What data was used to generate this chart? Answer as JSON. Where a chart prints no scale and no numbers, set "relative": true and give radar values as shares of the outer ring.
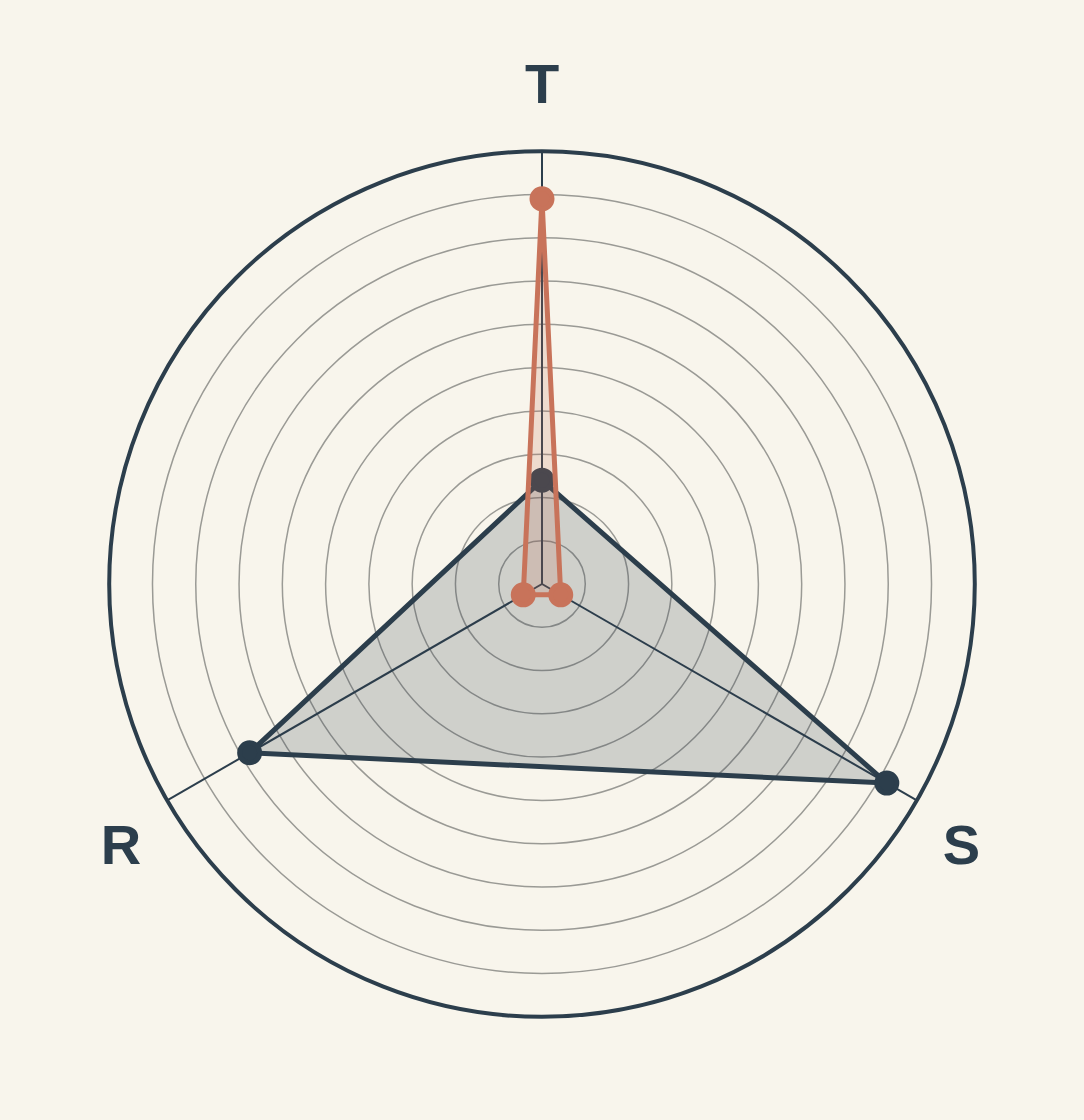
{
  "chart_data": {
    "type": "radar",
    "categories": [
      "T",
      "S",
      "R"
    ],
    "relative": true,
    "grid": true,
    "marker": "circle",
    "legend": false,
    "series": [
      {
        "color": "#c8735a",
        "values": [
          0.89,
          0.05,
          0.05
        ]
      },
      {
        "color": "#2c3e4c",
        "values": [
          0.24,
          0.92,
          0.78
        ]
      }
    ]
  }
}
